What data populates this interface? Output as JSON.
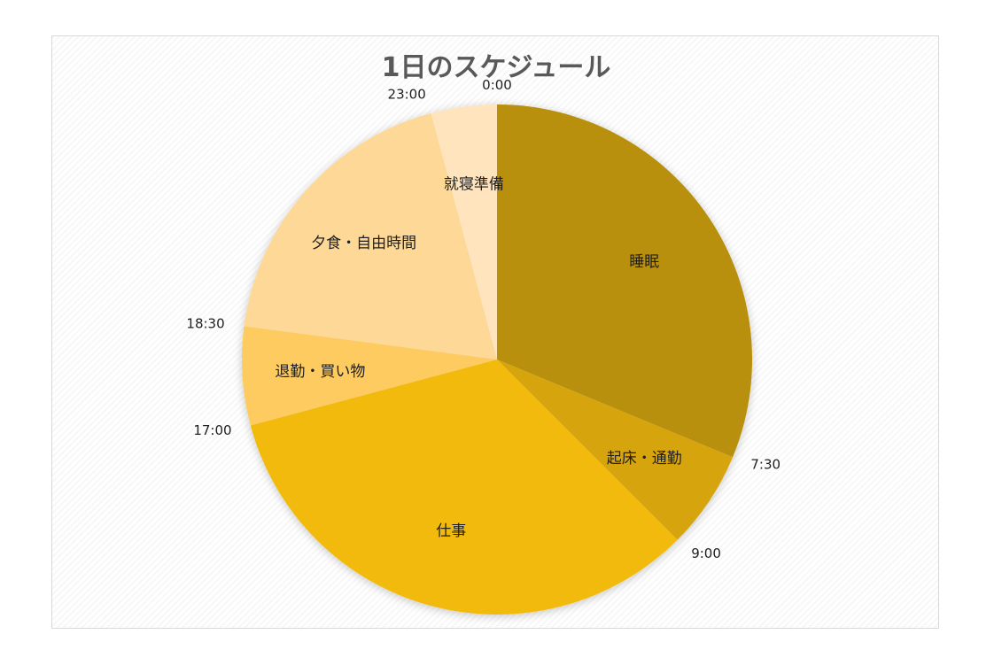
{
  "chart_data": {
    "type": "pie",
    "title": "1日のスケジュール",
    "categories": [
      "睡眠",
      "起床・通勤",
      "仕事",
      "退勤・買い物",
      "夕食・自由時間",
      "就寝準備"
    ],
    "values": [
      7.5,
      1.5,
      8,
      1.5,
      4.5,
      1
    ],
    "units": "hours",
    "colors": [
      "#B8900A",
      "#D6A50D",
      "#F2BA0A",
      "#FDCB5E",
      "#FDD897",
      "#FFE4BE"
    ],
    "start_angle_deg": 0,
    "direction": "clockwise",
    "boundary_labels": [
      "0:00",
      "7:30",
      "9:00",
      "17:00",
      "18:30",
      "23:00"
    ],
    "legend": "none"
  }
}
